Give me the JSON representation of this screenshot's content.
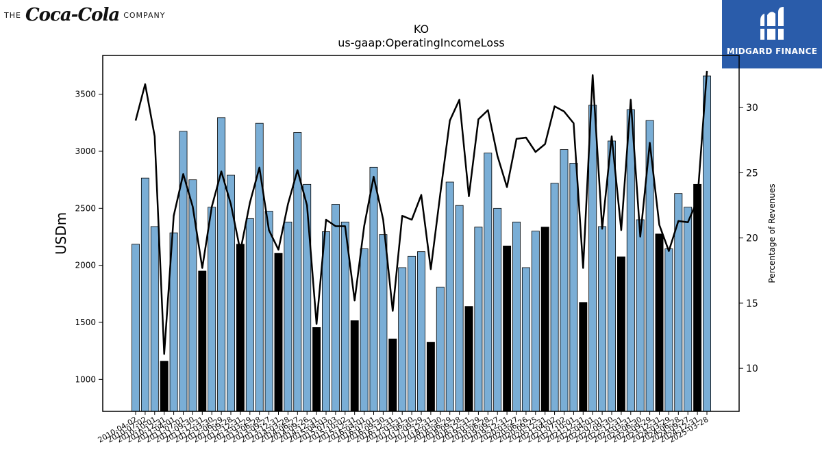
{
  "branding": {
    "company_prefix": "THE",
    "company_logo_text": "Coca-Cola",
    "company_suffix": "COMPANY",
    "publisher": "MIDGARD FINANCE",
    "badge_color": "#2a5caa"
  },
  "chart_data": {
    "type": "bar",
    "title": "KO",
    "subtitle": "us-gaap:OperatingIncomeLoss",
    "ylabel": "USDm",
    "y2label": "Percentage of Revenues",
    "ylim": [
      720,
      3840
    ],
    "y2lim": [
      6.7,
      34.0
    ],
    "yticks": [
      1000,
      1500,
      2000,
      2500,
      3000,
      3500
    ],
    "y2ticks": [
      10,
      15,
      20,
      25,
      30
    ],
    "bar_color": "#7aaed6",
    "highlight_color": "#000000",
    "line_color": "#000000",
    "categories": [
      "2010-04-02",
      "2010-07-02",
      "2010-10-01",
      "2010-12-31",
      "2011-04-01",
      "2011-07-01",
      "2011-09-30",
      "2011-12-31",
      "2012-03-30",
      "2012-06-29",
      "2012-09-28",
      "2012-12-31",
      "2013-03-29",
      "2013-06-28",
      "2013-09-27",
      "2013-12-31",
      "2014-03-28",
      "2014-06-27",
      "2014-09-26",
      "2014-12-31",
      "2015-04-03",
      "2015-07-03",
      "2015-10-02",
      "2015-12-31",
      "2016-04-01",
      "2016-07-01",
      "2016-09-30",
      "2016-12-31",
      "2017-03-31",
      "2017-06-30",
      "2017-09-29",
      "2017-12-31",
      "2018-03-30",
      "2018-06-29",
      "2018-09-28",
      "2018-12-31",
      "2019-03-29",
      "2019-06-28",
      "2019-09-27",
      "2019-12-31",
      "2020-03-27",
      "2020-06-26",
      "2020-09-25",
      "2020-12-31",
      "2021-04-02",
      "2021-07-02",
      "2021-10-01",
      "2021-12-31",
      "2022-04-01",
      "2022-07-01",
      "2022-09-30",
      "2022-12-31",
      "2023-03-31",
      "2023-06-30",
      "2023-09-29",
      "2023-12-31",
      "2024-03-29",
      "2024-06-28",
      "2024-09-27",
      "2024-12-31",
      "2025-03-28"
    ],
    "series": [
      {
        "type": "bar",
        "values": [
          2185,
          2765,
          2340,
          1160,
          2285,
          3175,
          2750,
          1950,
          2510,
          3295,
          2790,
          2185,
          2410,
          3245,
          2475,
          2105,
          2380,
          3165,
          2710,
          1455,
          2295,
          2535,
          2380,
          1515,
          2145,
          2860,
          2270,
          1355,
          1980,
          2080,
          2120,
          1325,
          1810,
          2730,
          2525,
          1640,
          2335,
          2985,
          2500,
          2170,
          2380,
          1980,
          2300,
          2335,
          2720,
          3015,
          2895,
          1675,
          3405,
          2340,
          3090,
          2075,
          3365,
          2400,
          3270,
          2275,
          2145,
          2630,
          2510,
          2710,
          3660
        ]
      },
      {
        "type": "line",
        "axis": "right",
        "values": [
          29.0,
          31.8,
          27.8,
          11.1,
          21.7,
          24.9,
          22.4,
          17.7,
          22.4,
          25.1,
          22.6,
          19.0,
          22.7,
          25.4,
          20.6,
          19.1,
          22.6,
          25.2,
          22.5,
          13.4,
          21.4,
          20.9,
          20.9,
          15.2,
          20.9,
          24.7,
          21.4,
          14.4,
          21.7,
          21.4,
          23.3,
          17.6,
          23.4,
          29.0,
          30.6,
          23.2,
          29.1,
          29.8,
          26.3,
          23.9,
          27.6,
          27.7,
          26.6,
          27.2,
          30.1,
          29.7,
          28.8,
          17.7,
          32.5,
          20.7,
          27.8,
          20.6,
          30.6,
          20.1,
          27.3,
          21.0,
          19.0,
          21.3,
          21.2,
          22.9,
          32.8
        ]
      }
    ],
    "highlighted_categories": [
      "2010-12-31",
      "2011-12-31",
      "2012-12-31",
      "2013-12-31",
      "2014-12-31",
      "2015-12-31",
      "2016-12-31",
      "2017-12-31",
      "2018-12-31",
      "2019-12-31",
      "2020-12-31",
      "2021-12-31",
      "2022-12-31",
      "2023-12-31",
      "2024-12-31"
    ]
  }
}
